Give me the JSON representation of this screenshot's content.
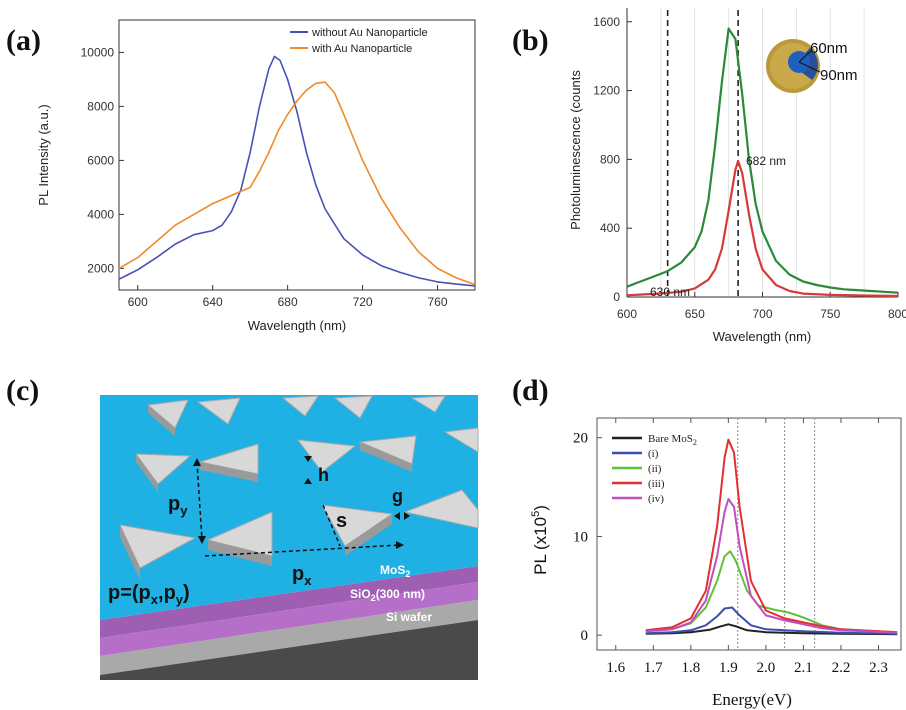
{
  "panels": {
    "a": {
      "letter": "(a)",
      "chart_data": {
        "type": "line",
        "xlabel": "Wavelength (nm)",
        "ylabel": "PL Intensity (a.u.)",
        "xlim": [
          590,
          780
        ],
        "ylim": [
          1200,
          11200
        ],
        "xticks": [
          600,
          640,
          680,
          720,
          760
        ],
        "yticks": [
          2000,
          4000,
          6000,
          8000,
          10000
        ],
        "legend_position": "top-right",
        "series": [
          {
            "name": "without Au Nanoparticle",
            "color": "#4a4fb5",
            "x": [
              590,
              600,
              610,
              620,
              630,
              640,
              645,
              650,
              655,
              660,
              665,
              670,
              673,
              676,
              680,
              685,
              690,
              695,
              700,
              710,
              720,
              730,
              740,
              750,
              760,
              770,
              780
            ],
            "y": [
              1600,
              1950,
              2400,
              2900,
              3250,
              3400,
              3600,
              4100,
              4900,
              6300,
              8000,
              9400,
              9850,
              9700,
              9000,
              7800,
              6300,
              5100,
              4200,
              3100,
              2500,
              2100,
              1850,
              1650,
              1500,
              1420,
              1350
            ]
          },
          {
            "name": "with Au Nanoparticle",
            "color": "#f08a2a",
            "x": [
              590,
              600,
              610,
              620,
              630,
              640,
              650,
              660,
              665,
              670,
              675,
              680,
              685,
              690,
              695,
              700,
              705,
              710,
              720,
              730,
              740,
              750,
              760,
              770,
              780
            ],
            "y": [
              2000,
              2400,
              3000,
              3600,
              4000,
              4400,
              4700,
              5000,
              5600,
              6300,
              7100,
              7700,
              8200,
              8600,
              8850,
              8900,
              8500,
              7700,
              6000,
              4600,
              3500,
              2600,
              2000,
              1650,
              1400
            ]
          }
        ]
      }
    },
    "b": {
      "letter": "(b)",
      "chart_data": {
        "type": "line",
        "xlabel": "Wavelength (nm)",
        "ylabel": "Photoluminescence (counts",
        "xlim": [
          600,
          800
        ],
        "ylim": [
          0,
          1680
        ],
        "xticks": [
          600,
          650,
          700,
          750,
          800
        ],
        "yticks": [
          0,
          400,
          800,
          1200,
          1600
        ],
        "vlines": [
          630,
          682
        ],
        "annotations": [
          "682 nm",
          "630 nm"
        ],
        "inset_labels": [
          "60nm",
          "90nm"
        ],
        "series": [
          {
            "color": "#2a8a3a",
            "x": [
              600,
              610,
              620,
              630,
              640,
              650,
              655,
              660,
              665,
              670,
              675,
              680,
              685,
              690,
              695,
              700,
              710,
              720,
              730,
              740,
              750,
              760,
              770,
              780,
              790,
              800
            ],
            "y": [
              60,
              90,
              120,
              150,
              200,
              290,
              380,
              560,
              880,
              1250,
              1560,
              1500,
              1180,
              800,
              540,
              380,
              210,
              130,
              90,
              70,
              55,
              45,
              40,
              35,
              30,
              25
            ]
          },
          {
            "color": "#d83a3a",
            "x": [
              600,
              620,
              640,
              650,
              660,
              665,
              670,
              675,
              680,
              682,
              685,
              690,
              695,
              700,
              710,
              720,
              730,
              750,
              780,
              800
            ],
            "y": [
              10,
              18,
              30,
              50,
              100,
              160,
              280,
              500,
              740,
              790,
              720,
              480,
              280,
              160,
              70,
              35,
              20,
              12,
              8,
              6
            ]
          }
        ]
      }
    },
    "c": {
      "letter": "(c)",
      "labels": {
        "h": "h",
        "g": "g",
        "s": "s",
        "py": "p",
        "py_sub": "y",
        "px": "p",
        "px_sub": "x",
        "p_formula": "p=(p",
        "p_formula_x": "x",
        "p_formula_comma": ",p",
        "p_formula_y": "y",
        "p_formula_close": ")",
        "mos2": "MoS",
        "mos2_sub": "2",
        "sio2": "SiO",
        "sio2_sub": "2",
        "sio2_rest": "(300 nm)",
        "si_wafer": "Si wafer"
      }
    },
    "d": {
      "letter": "(d)",
      "chart_data": {
        "type": "line",
        "xlabel": "Energy(eV)",
        "ylabel": "PL  (x10",
        "ylabel_sup": "5",
        "ylabel_close": ")",
        "xlim": [
          1.55,
          2.36
        ],
        "ylim": [
          -1.5,
          22
        ],
        "xticks": [
          1.6,
          1.7,
          1.8,
          1.9,
          2.0,
          2.1,
          2.2,
          2.3
        ],
        "yticks": [
          0,
          10,
          20
        ],
        "vlines": [
          1.925,
          2.05,
          2.13
        ],
        "legend_position": "top-left",
        "series": [
          {
            "name": "Bare MoS",
            "name_sub": "2",
            "color": "#222222",
            "x": [
              1.68,
              1.75,
              1.8,
              1.85,
              1.88,
              1.9,
              1.92,
              1.95,
              2.0,
              2.05,
              2.1,
              2.2,
              2.35
            ],
            "y": [
              0.15,
              0.2,
              0.3,
              0.55,
              0.9,
              1.1,
              0.9,
              0.5,
              0.3,
              0.25,
              0.2,
              0.15,
              0.1
            ]
          },
          {
            "name": "(i)",
            "color": "#3a4fb0",
            "x": [
              1.68,
              1.75,
              1.8,
              1.84,
              1.87,
              1.89,
              1.91,
              1.93,
              1.96,
              2.0,
              2.05,
              2.1,
              2.2,
              2.35
            ],
            "y": [
              0.2,
              0.3,
              0.5,
              1.0,
              1.9,
              2.7,
              2.8,
              2.0,
              1.0,
              0.6,
              0.5,
              0.4,
              0.25,
              0.15
            ]
          },
          {
            "name": "(ii)",
            "color": "#5cc23a",
            "x": [
              1.68,
              1.75,
              1.8,
              1.84,
              1.87,
              1.89,
              1.905,
              1.92,
              1.95,
              1.98,
              2.02,
              2.06,
              2.1,
              2.15,
              2.2,
              2.35
            ],
            "y": [
              0.4,
              0.6,
              1.2,
              2.8,
              5.5,
              8.0,
              8.5,
              7.5,
              4.5,
              3.0,
              2.6,
              2.3,
              1.8,
              1.0,
              0.6,
              0.3
            ]
          },
          {
            "name": "(iii)",
            "color": "#e03030",
            "x": [
              1.68,
              1.75,
              1.8,
              1.84,
              1.87,
              1.89,
              1.9,
              1.915,
              1.93,
              1.96,
              2.0,
              2.05,
              2.1,
              2.15,
              2.2,
              2.35
            ],
            "y": [
              0.5,
              0.8,
              1.7,
              4.5,
              11.0,
              18.0,
              19.8,
              18.5,
              13.0,
              5.5,
              2.5,
              1.7,
              1.3,
              0.9,
              0.6,
              0.3
            ]
          },
          {
            "name": "(iv)",
            "color": "#c04ec0",
            "x": [
              1.68,
              1.75,
              1.8,
              1.84,
              1.87,
              1.89,
              1.9,
              1.915,
              1.93,
              1.96,
              2.0,
              2.05,
              2.1,
              2.15,
              2.2,
              2.35
            ],
            "y": [
              0.4,
              0.6,
              1.3,
              3.5,
              8.0,
              12.5,
              13.8,
              13.0,
              9.0,
              4.0,
              2.0,
              1.5,
              1.1,
              0.7,
              0.5,
              0.25
            ]
          }
        ]
      }
    }
  }
}
